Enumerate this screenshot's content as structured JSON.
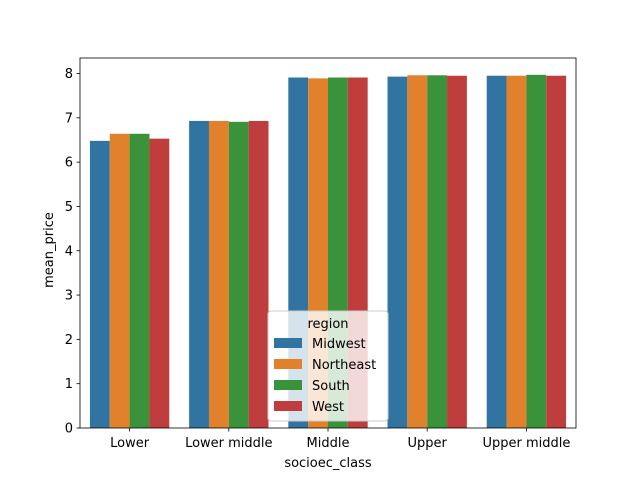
{
  "chart_data": {
    "type": "bar",
    "title": "",
    "xlabel": "socioec_class",
    "ylabel": "mean_price",
    "ylim": [
      0,
      8.35
    ],
    "yticks": [
      0,
      1,
      2,
      3,
      4,
      5,
      6,
      7,
      8
    ],
    "categories": [
      "Lower",
      "Lower middle",
      "Middle",
      "Upper",
      "Upper middle"
    ],
    "series": [
      {
        "name": "Midwest",
        "color": "#3274a1",
        "values": [
          6.48,
          6.93,
          7.91,
          7.93,
          7.95
        ]
      },
      {
        "name": "Northeast",
        "color": "#e1812c",
        "values": [
          6.64,
          6.93,
          7.89,
          7.96,
          7.95
        ]
      },
      {
        "name": "South",
        "color": "#3a923a",
        "values": [
          6.64,
          6.91,
          7.91,
          7.96,
          7.97
        ]
      },
      {
        "name": "West",
        "color": "#c03d3e",
        "values": [
          6.53,
          6.93,
          7.91,
          7.95,
          7.95
        ]
      }
    ],
    "legend": {
      "title": "region",
      "position": "bottom-center"
    },
    "grid": false
  }
}
